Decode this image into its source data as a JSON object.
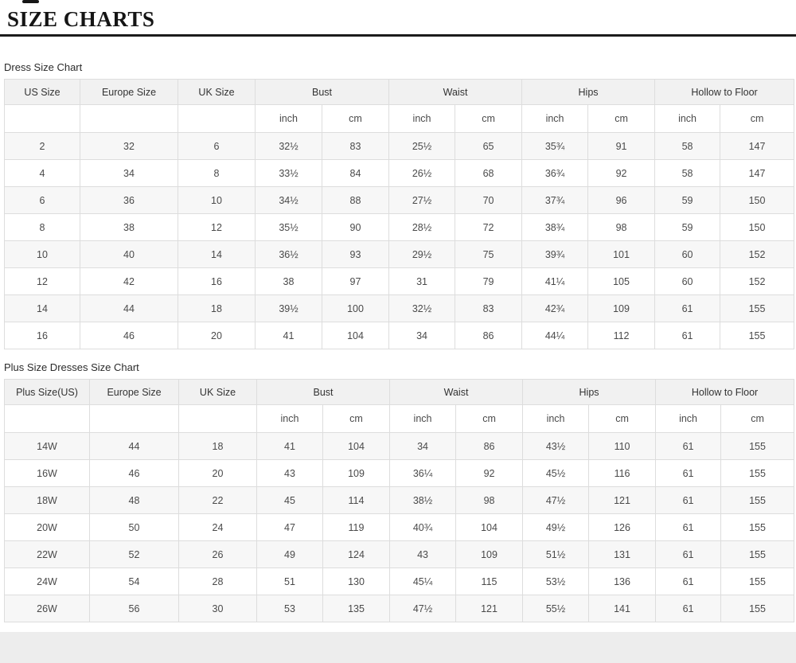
{
  "page": {
    "title": "SIZE CHARTS"
  },
  "colors": {
    "title_text": "#151515",
    "title_rule": "#1c1c1c",
    "table_border": "#dddddd",
    "header_row_bg": "#f1f1f1",
    "stripe_row_bg": "#f7f7f7",
    "cell_text": "#4a4a4a",
    "footer_band_bg": "#ededed"
  },
  "sections": [
    {
      "label": "Dress Size Chart"
    },
    {
      "label": "Plus Size Dresses Size Chart"
    }
  ],
  "tables": {
    "dress": {
      "header_groups": [
        {
          "label": "US Size",
          "colspan": 1
        },
        {
          "label": "Europe Size",
          "colspan": 1
        },
        {
          "label": "UK Size",
          "colspan": 1
        },
        {
          "label": "Bust",
          "colspan": 2
        },
        {
          "label": "Waist",
          "colspan": 2
        },
        {
          "label": "Hips",
          "colspan": 2
        },
        {
          "label": "Hollow to Floor",
          "colspan": 2
        }
      ],
      "subheader": [
        "",
        "",
        "",
        "inch",
        "cm",
        "inch",
        "cm",
        "inch",
        "cm",
        "inch",
        "cm"
      ],
      "rows": [
        [
          "2",
          "32",
          "6",
          "32½",
          "83",
          "25½",
          "65",
          "35¾",
          "91",
          "58",
          "147"
        ],
        [
          "4",
          "34",
          "8",
          "33½",
          "84",
          "26½",
          "68",
          "36¾",
          "92",
          "58",
          "147"
        ],
        [
          "6",
          "36",
          "10",
          "34½",
          "88",
          "27½",
          "70",
          "37¾",
          "96",
          "59",
          "150"
        ],
        [
          "8",
          "38",
          "12",
          "35½",
          "90",
          "28½",
          "72",
          "38¾",
          "98",
          "59",
          "150"
        ],
        [
          "10",
          "40",
          "14",
          "36½",
          "93",
          "29½",
          "75",
          "39¾",
          "101",
          "60",
          "152"
        ],
        [
          "12",
          "42",
          "16",
          "38",
          "97",
          "31",
          "79",
          "41¼",
          "105",
          "60",
          "152"
        ],
        [
          "14",
          "44",
          "18",
          "39½",
          "100",
          "32½",
          "83",
          "42¾",
          "109",
          "61",
          "155"
        ],
        [
          "16",
          "46",
          "20",
          "41",
          "104",
          "34",
          "86",
          "44¼",
          "112",
          "61",
          "155"
        ]
      ]
    },
    "plus": {
      "header_groups": [
        {
          "label": "Plus Size(US)",
          "colspan": 1
        },
        {
          "label": "Europe Size",
          "colspan": 1
        },
        {
          "label": "UK Size",
          "colspan": 1
        },
        {
          "label": "Bust",
          "colspan": 2
        },
        {
          "label": "Waist",
          "colspan": 2
        },
        {
          "label": "Hips",
          "colspan": 2
        },
        {
          "label": "Hollow to Floor",
          "colspan": 2
        }
      ],
      "subheader": [
        "",
        "",
        "",
        "inch",
        "cm",
        "inch",
        "cm",
        "inch",
        "cm",
        "inch",
        "cm"
      ],
      "rows": [
        [
          "14W",
          "44",
          "18",
          "41",
          "104",
          "34",
          "86",
          "43½",
          "110",
          "61",
          "155"
        ],
        [
          "16W",
          "46",
          "20",
          "43",
          "109",
          "36¼",
          "92",
          "45½",
          "116",
          "61",
          "155"
        ],
        [
          "18W",
          "48",
          "22",
          "45",
          "114",
          "38½",
          "98",
          "47½",
          "121",
          "61",
          "155"
        ],
        [
          "20W",
          "50",
          "24",
          "47",
          "119",
          "40¾",
          "104",
          "49½",
          "126",
          "61",
          "155"
        ],
        [
          "22W",
          "52",
          "26",
          "49",
          "124",
          "43",
          "109",
          "51½",
          "131",
          "61",
          "155"
        ],
        [
          "24W",
          "54",
          "28",
          "51",
          "130",
          "45¼",
          "115",
          "53½",
          "136",
          "61",
          "155"
        ],
        [
          "26W",
          "56",
          "30",
          "53",
          "135",
          "47½",
          "121",
          "55½",
          "141",
          "61",
          "155"
        ]
      ]
    }
  }
}
